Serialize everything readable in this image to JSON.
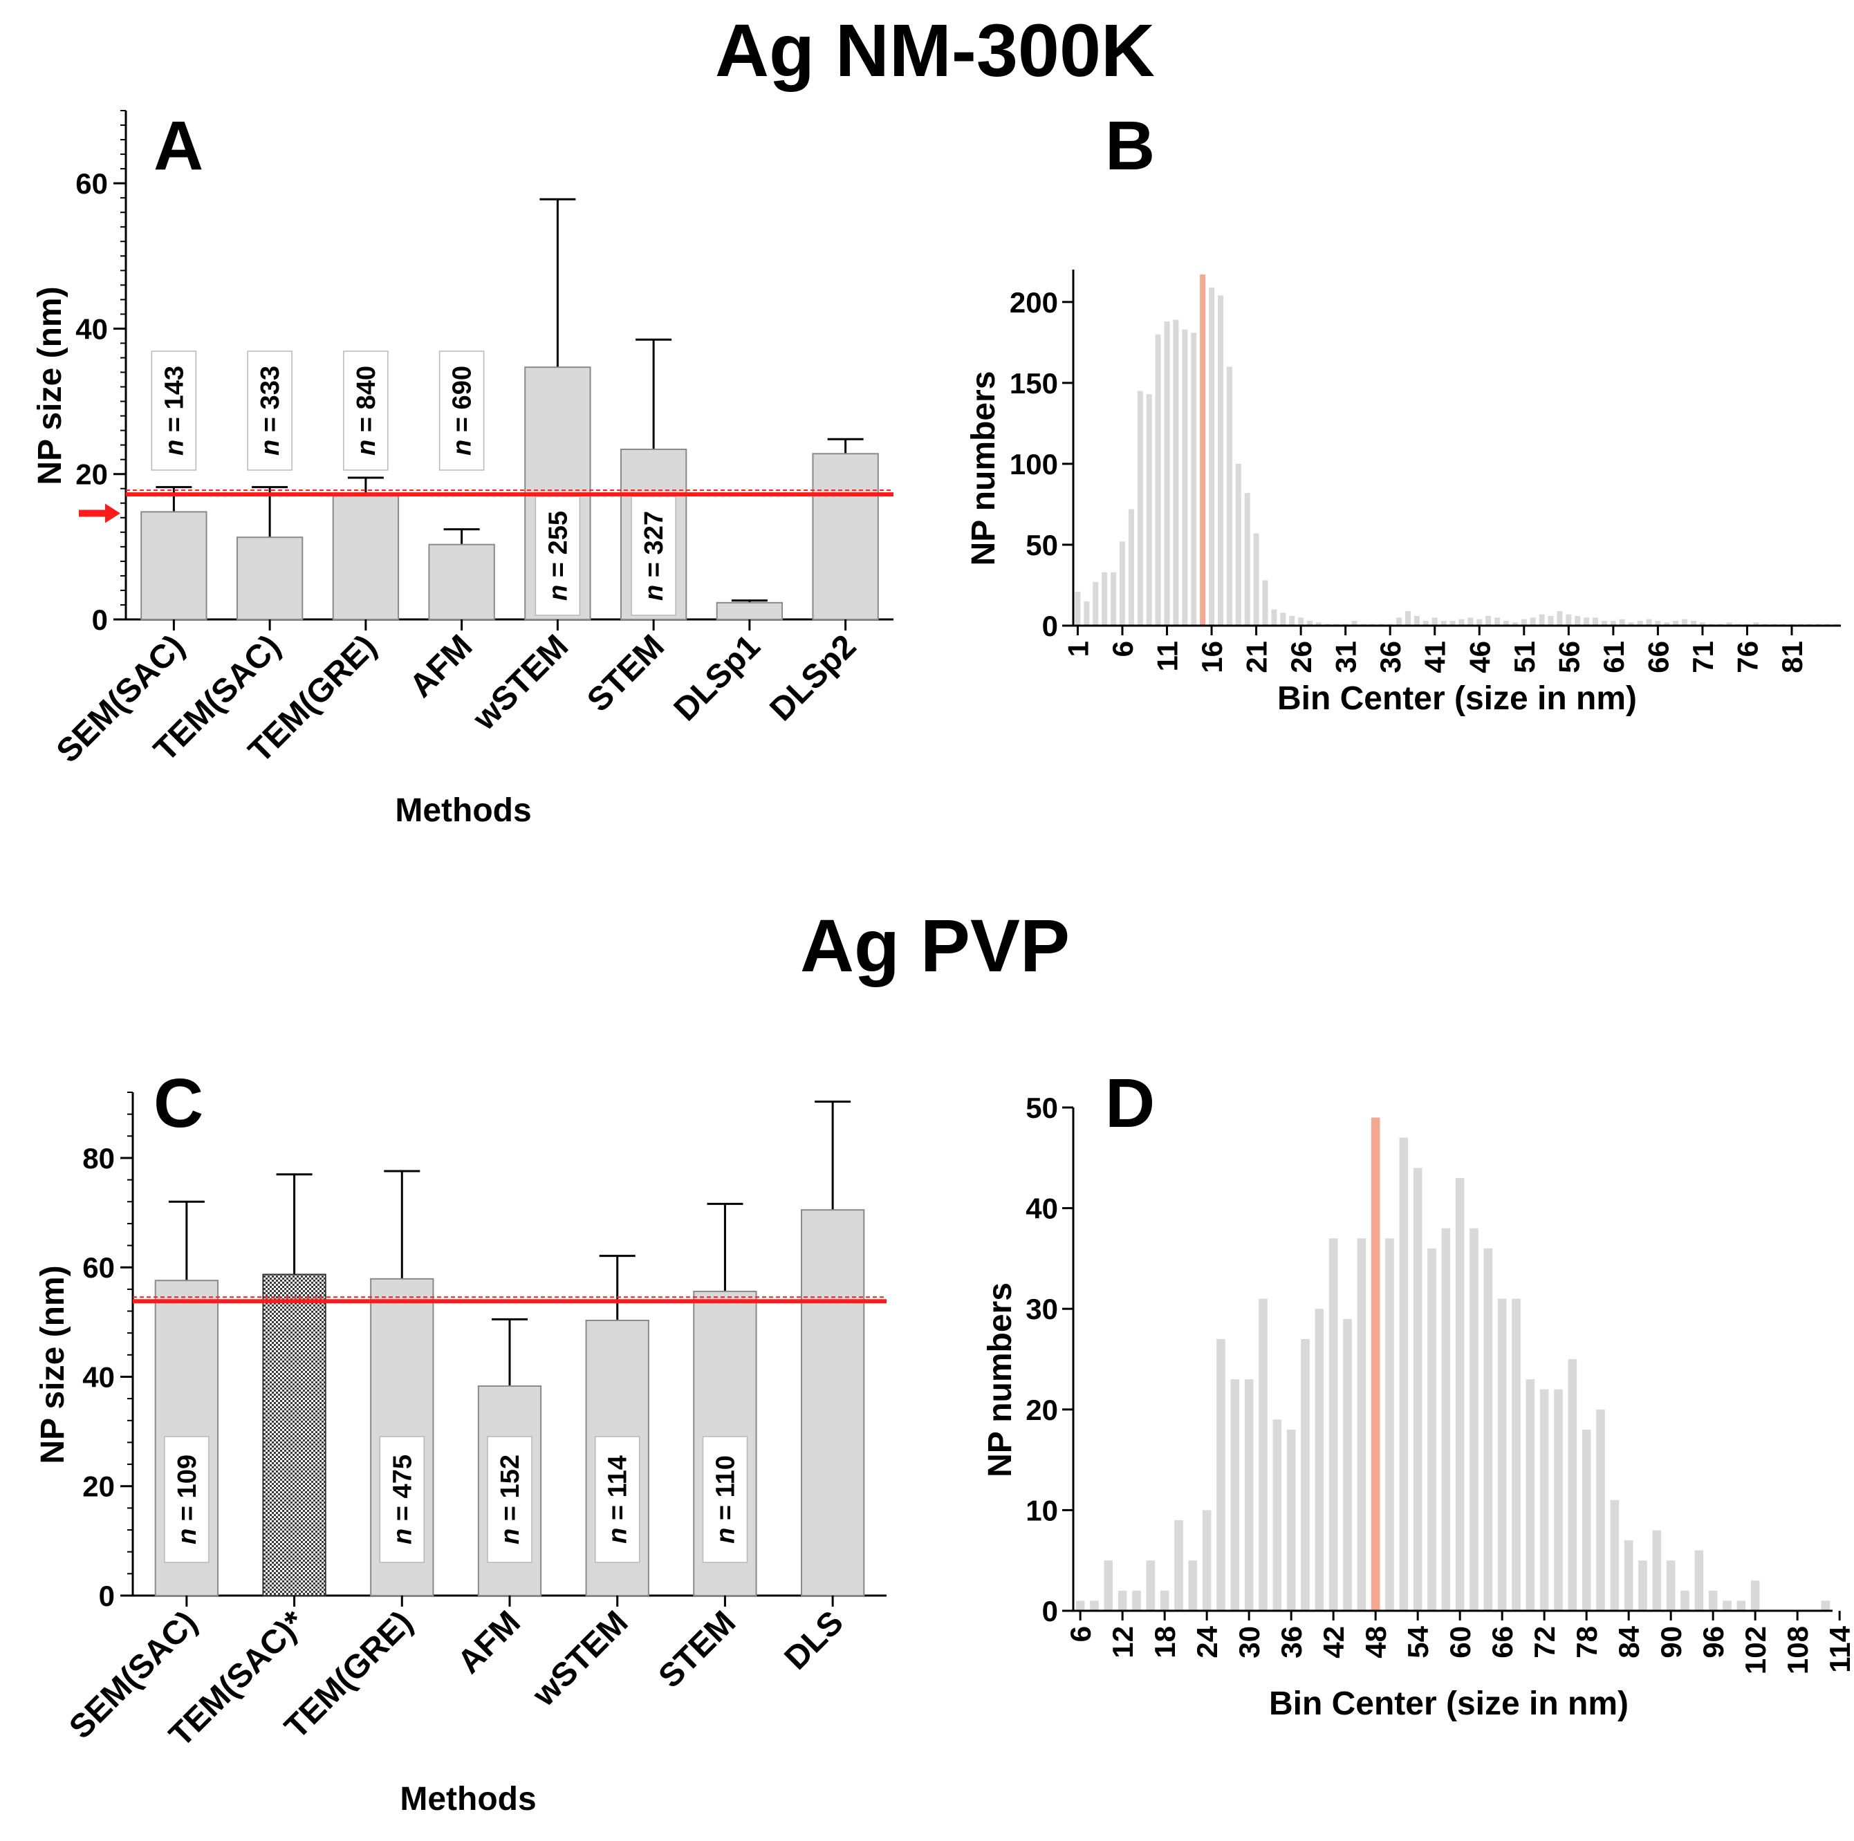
{
  "titles": {
    "top": "Ag NM-300K",
    "bottom": "Ag PVP"
  },
  "colors": {
    "bar": "#d9d9d9",
    "highlight": "#f4a891",
    "ref_line": "#ff1a1a",
    "axis": "#000000"
  },
  "chart_data": [
    {
      "panel": "A",
      "type": "bar",
      "title": "",
      "xlabel": "Methods",
      "ylabel": "NP size (nm)",
      "ylim": [
        0,
        70
      ],
      "yticks": [
        0,
        20,
        40,
        60
      ],
      "categories": [
        "SEM(SAC)",
        "TEM(SAC)",
        "TEM(GRE)",
        "AFM",
        "wSTEM",
        "STEM",
        "DLSp1",
        "DLSp2"
      ],
      "values": [
        14.8,
        11.3,
        17.0,
        10.3,
        34.7,
        23.4,
        2.3,
        22.8
      ],
      "errors": [
        3.4,
        6.9,
        2.5,
        2.1,
        23.1,
        15.1,
        0.3,
        2.0
      ],
      "n_labels": [
        "n = 143",
        "n = 333",
        "n = 840",
        "n = 690",
        "n = 255",
        "n = 327",
        "",
        ""
      ],
      "reference_line": 17.2,
      "reference_marker": 14.6
    },
    {
      "panel": "B",
      "type": "bar",
      "title": "",
      "xlabel": "Bin Center (size in nm)",
      "ylabel": "NP numbers",
      "ylim": [
        0,
        220
      ],
      "yticks": [
        0,
        50,
        100,
        150,
        200
      ],
      "xticks": [
        1,
        6,
        11,
        16,
        21,
        26,
        31,
        36,
        41,
        46,
        51,
        56,
        61,
        66,
        71,
        76,
        81
      ],
      "x_start": 1,
      "x_step": 1,
      "highlight_x": 15,
      "values": [
        21,
        15,
        27,
        33,
        33,
        52,
        72,
        145,
        143,
        180,
        188,
        189,
        183,
        181,
        217,
        209,
        204,
        160,
        100,
        82,
        57,
        28,
        10,
        8,
        6,
        5,
        3,
        2,
        1,
        1,
        1,
        3,
        1,
        1,
        1,
        1,
        5,
        9,
        6,
        3,
        5,
        3,
        3,
        4,
        5,
        4,
        6,
        5,
        3,
        2,
        4,
        5,
        7,
        6,
        9,
        7,
        6,
        5,
        5,
        3,
        3,
        4,
        2,
        3,
        4,
        3,
        2,
        3,
        4,
        3,
        2,
        1,
        1,
        2,
        1,
        1,
        2,
        1,
        1,
        1,
        1,
        1,
        1,
        1,
        1,
        1
      ]
    },
    {
      "panel": "C",
      "type": "bar",
      "title": "",
      "xlabel": "Methods",
      "ylabel": "NP size (nm)",
      "ylim": [
        0,
        92
      ],
      "yticks": [
        0,
        20,
        40,
        60,
        80
      ],
      "categories": [
        "SEM(SAC)",
        "TEM(SAC)*",
        "TEM(GRE)",
        "AFM",
        "wSTEM",
        "STEM",
        "DLS"
      ],
      "values": [
        57.6,
        58.7,
        57.9,
        38.3,
        50.3,
        55.6,
        70.5
      ],
      "errors": [
        14.4,
        18.3,
        19.7,
        12.2,
        11.8,
        16.0,
        19.8
      ],
      "n_labels": [
        "n = 109",
        "",
        "n = 475",
        "n = 152",
        "n = 114",
        "n = 110",
        ""
      ],
      "patterned_bar": 1,
      "reference_line": 53.8
    },
    {
      "panel": "D",
      "type": "bar",
      "title": "",
      "xlabel": "Bin Center (size in nm)",
      "ylabel": "NP numbers",
      "ylim": [
        0,
        50
      ],
      "yticks": [
        0,
        10,
        20,
        30,
        40,
        50
      ],
      "xticks": [
        6,
        12,
        18,
        24,
        30,
        36,
        42,
        48,
        54,
        60,
        66,
        72,
        78,
        84,
        90,
        96,
        102,
        108,
        114
      ],
      "x_start": 6,
      "x_step": 2,
      "highlight_x": 48,
      "values": [
        1,
        1,
        5,
        2,
        2,
        5,
        2,
        9,
        5,
        10,
        27,
        23,
        23,
        31,
        19,
        18,
        27,
        30,
        37,
        29,
        37,
        49,
        37,
        47,
        44,
        36,
        38,
        43,
        38,
        36,
        31,
        31,
        23,
        22,
        22,
        25,
        18,
        20,
        11,
        7,
        5,
        8,
        5,
        2,
        6,
        2,
        1,
        1,
        3,
        0,
        0,
        0,
        0,
        1
      ]
    }
  ]
}
